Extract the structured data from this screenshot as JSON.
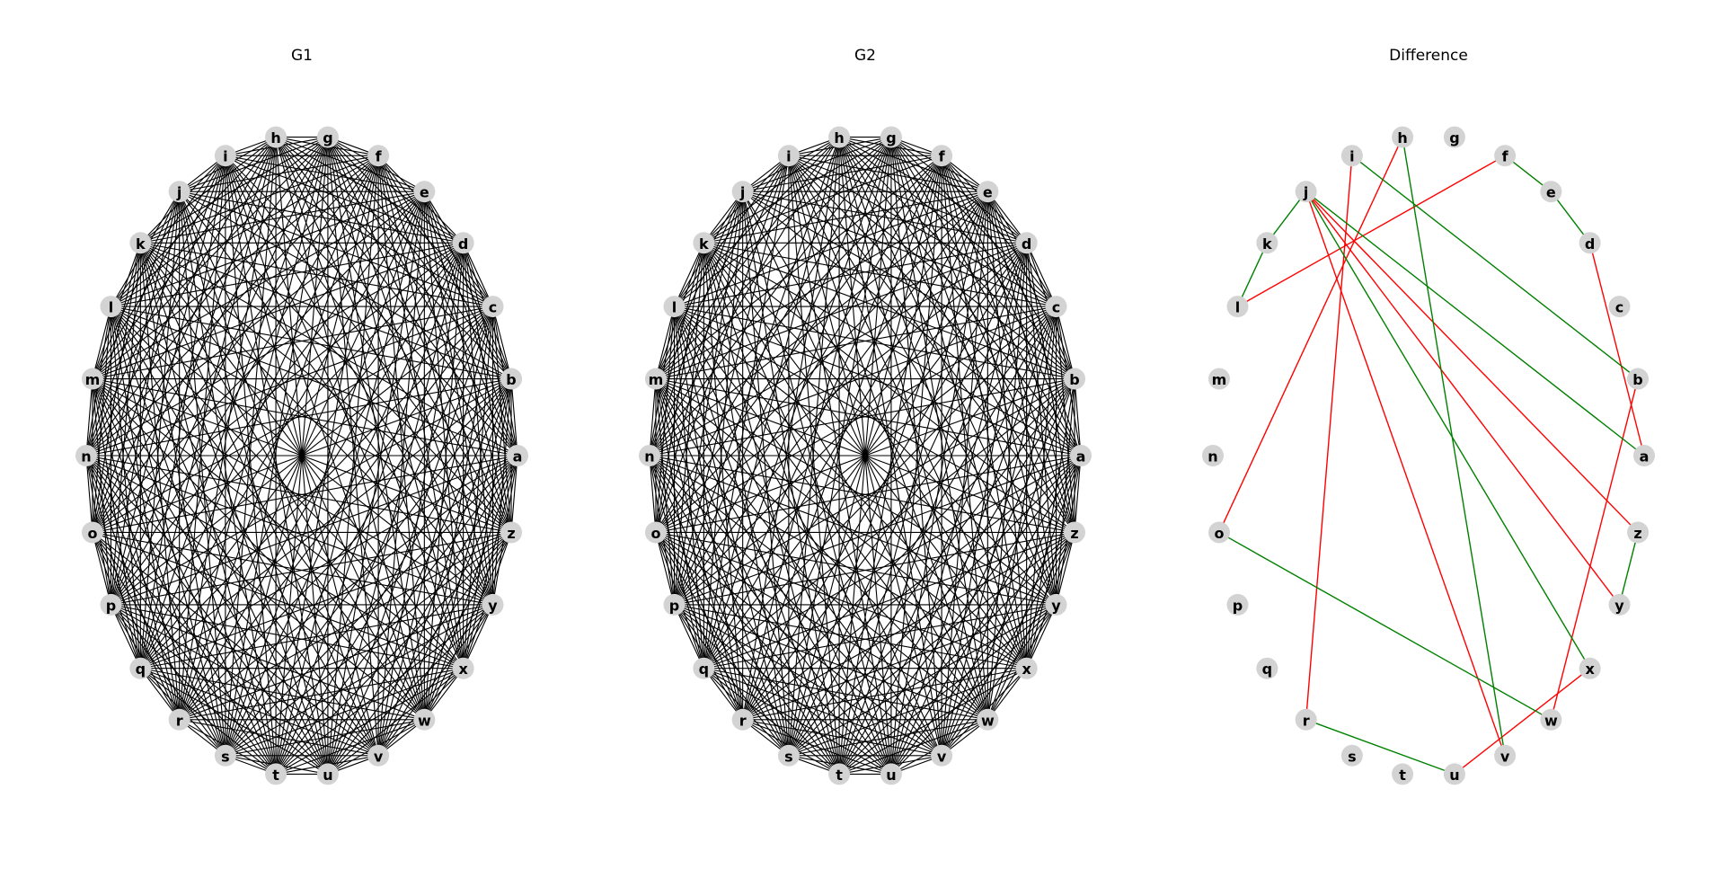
{
  "figure": {
    "panels": [
      {
        "key": "g1",
        "title": "G1"
      },
      {
        "key": "g2",
        "title": "G2"
      },
      {
        "key": "diff",
        "title": "Difference"
      }
    ]
  },
  "nodes": [
    "a",
    "b",
    "c",
    "d",
    "e",
    "f",
    "g",
    "h",
    "i",
    "j",
    "k",
    "l",
    "m",
    "n",
    "o",
    "p",
    "q",
    "r",
    "s",
    "t",
    "u",
    "v",
    "w",
    "x",
    "y",
    "z"
  ],
  "graphs": {
    "g1": {
      "edge_color": "#000000",
      "complete_graph": true,
      "missing_edges": [
        [
          "j",
          "x"
        ],
        [
          "j",
          "a"
        ],
        [
          "j",
          "k"
        ],
        [
          "h",
          "v"
        ],
        [
          "i",
          "b"
        ],
        [
          "k",
          "l"
        ],
        [
          "o",
          "w"
        ],
        [
          "r",
          "u"
        ],
        [
          "e",
          "f"
        ],
        [
          "d",
          "e"
        ],
        [
          "y",
          "z"
        ]
      ]
    },
    "g2": {
      "edge_color": "#000000",
      "complete_graph": true,
      "missing_edges": [
        [
          "j",
          "z"
        ],
        [
          "j",
          "y"
        ],
        [
          "j",
          "v"
        ],
        [
          "f",
          "l"
        ],
        [
          "h",
          "o"
        ],
        [
          "i",
          "r"
        ],
        [
          "u",
          "x"
        ],
        [
          "w",
          "b"
        ],
        [
          "d",
          "a"
        ]
      ]
    }
  },
  "difference": {
    "legend_colors": {
      "only_in_g1": "#ff0000",
      "only_in_g2": "#008000"
    },
    "only_in_g1": [
      [
        "j",
        "z"
      ],
      [
        "j",
        "y"
      ],
      [
        "j",
        "v"
      ],
      [
        "f",
        "l"
      ],
      [
        "h",
        "o"
      ],
      [
        "i",
        "r"
      ],
      [
        "u",
        "x"
      ],
      [
        "w",
        "b"
      ],
      [
        "d",
        "a"
      ]
    ],
    "only_in_g2": [
      [
        "j",
        "x"
      ],
      [
        "j",
        "a"
      ],
      [
        "j",
        "k"
      ],
      [
        "h",
        "v"
      ],
      [
        "i",
        "b"
      ],
      [
        "k",
        "l"
      ],
      [
        "o",
        "w"
      ],
      [
        "r",
        "u"
      ],
      [
        "e",
        "f"
      ],
      [
        "d",
        "e"
      ],
      [
        "y",
        "z"
      ]
    ]
  }
}
